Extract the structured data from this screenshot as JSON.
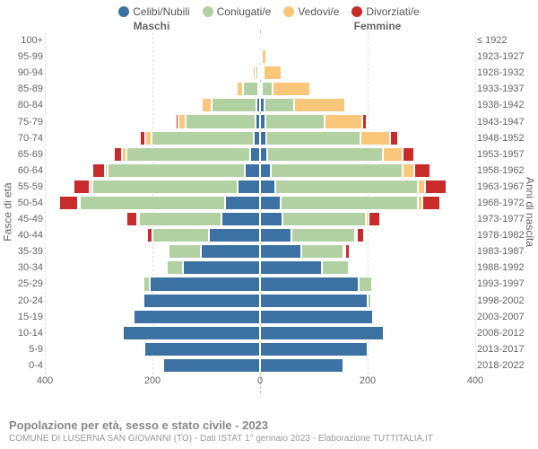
{
  "legend": [
    {
      "label": "Celibi/Nubili",
      "color": "#3b72a3"
    },
    {
      "label": "Coniugati/e",
      "color": "#b1d1a2"
    },
    {
      "label": "Vedovi/e",
      "color": "#f9c67a"
    },
    {
      "label": "Divorziati/e",
      "color": "#c92a2a"
    }
  ],
  "panels": {
    "left": "Maschi",
    "right": "Femmine"
  },
  "axes": {
    "left_label": "Fasce di età",
    "right_label": "Anni di nascita",
    "xlim_each_side": 400,
    "xticks_left": [
      400,
      200,
      0
    ],
    "xticks_right": [
      200,
      400
    ]
  },
  "colors": {
    "background": "#ffffff",
    "grid": "#dddddd",
    "midline": "#bbbbbb",
    "text": "#666666"
  },
  "rows": [
    {
      "age": "100+",
      "birth": "≤ 1922",
      "m": {
        "single": 0,
        "married": 0,
        "widowed": 2,
        "divorced": 0
      },
      "f": {
        "single": 0,
        "married": 0,
        "widowed": 3,
        "divorced": 0
      }
    },
    {
      "age": "95-99",
      "birth": "1923-1927",
      "m": {
        "single": 0,
        "married": 1,
        "widowed": 3,
        "divorced": 0
      },
      "f": {
        "single": 1,
        "married": 0,
        "widowed": 10,
        "divorced": 0
      }
    },
    {
      "age": "90-94",
      "birth": "1928-1932",
      "m": {
        "single": 1,
        "married": 6,
        "widowed": 6,
        "divorced": 0
      },
      "f": {
        "single": 2,
        "married": 4,
        "widowed": 34,
        "divorced": 0
      }
    },
    {
      "age": "85-89",
      "birth": "1933-1937",
      "m": {
        "single": 3,
        "married": 30,
        "widowed": 12,
        "divorced": 1
      },
      "f": {
        "single": 4,
        "married": 20,
        "widowed": 70,
        "divorced": 2
      }
    },
    {
      "age": "80-84",
      "birth": "1938-1942",
      "m": {
        "single": 6,
        "married": 85,
        "widowed": 18,
        "divorced": 3
      },
      "f": {
        "single": 8,
        "married": 55,
        "widowed": 95,
        "divorced": 4
      }
    },
    {
      "age": "75-79",
      "birth": "1943-1947",
      "m": {
        "single": 8,
        "married": 130,
        "widowed": 14,
        "divorced": 5
      },
      "f": {
        "single": 10,
        "married": 110,
        "widowed": 70,
        "divorced": 8
      }
    },
    {
      "age": "70-74",
      "birth": "1948-1952",
      "m": {
        "single": 12,
        "married": 190,
        "widowed": 12,
        "divorced": 10
      },
      "f": {
        "single": 12,
        "married": 175,
        "widowed": 55,
        "divorced": 14
      }
    },
    {
      "age": "65-69",
      "birth": "1953-1957",
      "m": {
        "single": 18,
        "married": 230,
        "widowed": 8,
        "divorced": 16
      },
      "f": {
        "single": 14,
        "married": 215,
        "widowed": 36,
        "divorced": 22
      }
    },
    {
      "age": "60-64",
      "birth": "1958-1962",
      "m": {
        "single": 28,
        "married": 255,
        "widowed": 6,
        "divorced": 22
      },
      "f": {
        "single": 20,
        "married": 245,
        "widowed": 22,
        "divorced": 30
      }
    },
    {
      "age": "55-59",
      "birth": "1963-1967",
      "m": {
        "single": 42,
        "married": 270,
        "widowed": 4,
        "divorced": 30
      },
      "f": {
        "single": 28,
        "married": 265,
        "widowed": 14,
        "divorced": 40
      }
    },
    {
      "age": "50-54",
      "birth": "1968-1972",
      "m": {
        "single": 65,
        "married": 270,
        "widowed": 3,
        "divorced": 35
      },
      "f": {
        "single": 38,
        "married": 255,
        "widowed": 8,
        "divorced": 34
      }
    },
    {
      "age": "45-49",
      "birth": "1973-1977",
      "m": {
        "single": 72,
        "married": 155,
        "widowed": 1,
        "divorced": 20
      },
      "f": {
        "single": 42,
        "married": 155,
        "widowed": 4,
        "divorced": 22
      }
    },
    {
      "age": "40-44",
      "birth": "1978-1982",
      "m": {
        "single": 95,
        "married": 105,
        "widowed": 0,
        "divorced": 10
      },
      "f": {
        "single": 58,
        "married": 120,
        "widowed": 2,
        "divorced": 14
      }
    },
    {
      "age": "35-39",
      "birth": "1983-1987",
      "m": {
        "single": 110,
        "married": 60,
        "widowed": 0,
        "divorced": 4
      },
      "f": {
        "single": 78,
        "married": 80,
        "widowed": 1,
        "divorced": 7
      }
    },
    {
      "age": "30-34",
      "birth": "1988-1992",
      "m": {
        "single": 145,
        "married": 30,
        "widowed": 0,
        "divorced": 2
      },
      "f": {
        "single": 115,
        "married": 50,
        "widowed": 0,
        "divorced": 3
      }
    },
    {
      "age": "25-29",
      "birth": "1993-1997",
      "m": {
        "single": 205,
        "married": 12,
        "widowed": 0,
        "divorced": 0
      },
      "f": {
        "single": 185,
        "married": 25,
        "widowed": 0,
        "divorced": 1
      }
    },
    {
      "age": "20-24",
      "birth": "1998-2002",
      "m": {
        "single": 218,
        "married": 2,
        "widowed": 0,
        "divorced": 0
      },
      "f": {
        "single": 200,
        "married": 6,
        "widowed": 0,
        "divorced": 0
      }
    },
    {
      "age": "15-19",
      "birth": "2003-2007",
      "m": {
        "single": 235,
        "married": 0,
        "widowed": 0,
        "divorced": 0
      },
      "f": {
        "single": 210,
        "married": 0,
        "widowed": 0,
        "divorced": 0
      }
    },
    {
      "age": "10-14",
      "birth": "2008-2012",
      "m": {
        "single": 255,
        "married": 0,
        "widowed": 0,
        "divorced": 0
      },
      "f": {
        "single": 230,
        "married": 0,
        "widowed": 0,
        "divorced": 0
      }
    },
    {
      "age": "5-9",
      "birth": "2013-2017",
      "m": {
        "single": 215,
        "married": 0,
        "widowed": 0,
        "divorced": 0
      },
      "f": {
        "single": 200,
        "married": 0,
        "widowed": 0,
        "divorced": 0
      }
    },
    {
      "age": "0-4",
      "birth": "2018-2022",
      "m": {
        "single": 180,
        "married": 0,
        "widowed": 0,
        "divorced": 0
      },
      "f": {
        "single": 155,
        "married": 0,
        "widowed": 0,
        "divorced": 0
      }
    }
  ],
  "footer": {
    "title": "Popolazione per età, sesso e stato civile - 2023",
    "subtitle": "COMUNE DI LUSERNA SAN GIOVANNI (TO) - Dati ISTAT 1° gennaio 2023 - Elaborazione TUTTITALIA.IT"
  },
  "chart_type": "population-pyramid-stacked"
}
